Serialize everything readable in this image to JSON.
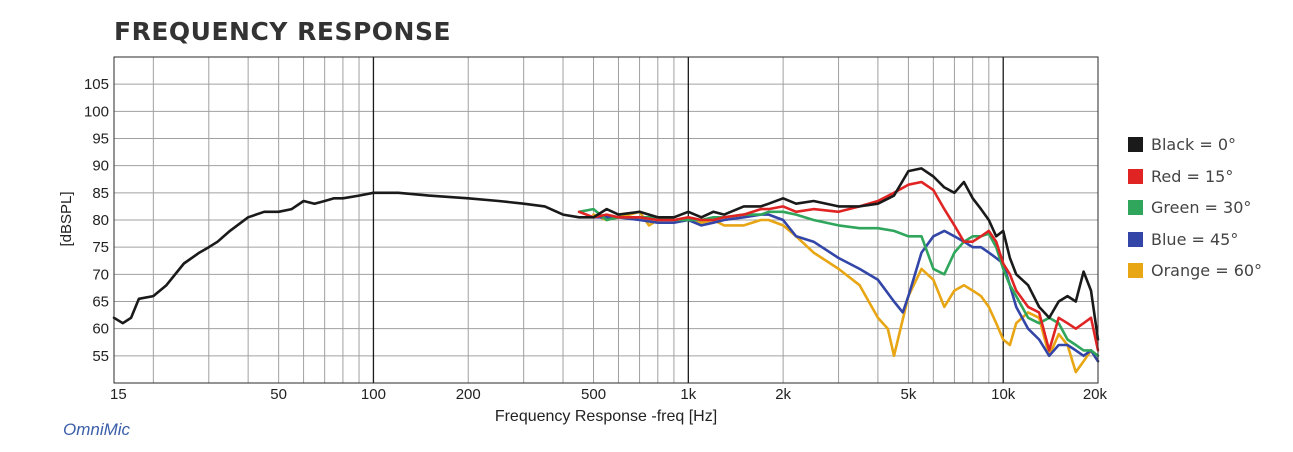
{
  "chart_data": {
    "type": "line",
    "title": "FREQUENCY RESPONSE",
    "xlabel": "Frequency Response -freq [Hz]",
    "ylabel": "[dBSPL]",
    "x_scale": "log",
    "xlim": [
      15,
      20000
    ],
    "ylim": [
      50,
      110
    ],
    "x_ticks": [
      15,
      50,
      100,
      200,
      500,
      1000,
      2000,
      5000,
      10000,
      20000
    ],
    "x_tick_labels": [
      "15",
      "50",
      "100",
      "200",
      "500",
      "1k",
      "2k",
      "5k",
      "10k",
      "20k"
    ],
    "y_ticks": [
      55,
      60,
      65,
      70,
      75,
      80,
      85,
      90,
      95,
      100,
      105
    ],
    "grid": true,
    "legend_position": "right",
    "series": [
      {
        "name": "Black = 0°",
        "color": "#1a1a1a",
        "x": [
          15,
          16,
          17,
          18,
          20,
          22,
          25,
          28,
          30,
          32,
          35,
          40,
          45,
          50,
          55,
          60,
          65,
          70,
          75,
          80,
          90,
          100,
          110,
          120,
          150,
          200,
          250,
          300,
          350,
          400,
          450,
          500,
          550,
          600,
          700,
          800,
          900,
          1000,
          1100,
          1200,
          1300,
          1500,
          1700,
          1800,
          2000,
          2200,
          2500,
          3000,
          3500,
          4000,
          4500,
          5000,
          5500,
          6000,
          6500,
          7000,
          7500,
          8000,
          8500,
          9000,
          9500,
          10000,
          10500,
          11000,
          12000,
          13000,
          14000,
          15000,
          16000,
          17000,
          18000,
          19000,
          20000
        ],
        "y": [
          62,
          61,
          62,
          65.5,
          66,
          68,
          72,
          74,
          75,
          76,
          78,
          80.5,
          81.5,
          81.5,
          82,
          83.5,
          83,
          83.5,
          84,
          84,
          84.5,
          85,
          85,
          85,
          84.5,
          84,
          83.5,
          83,
          82.5,
          81,
          80.5,
          80.5,
          82,
          81,
          81.5,
          80.5,
          80.5,
          81.5,
          80.5,
          81.5,
          81,
          82.5,
          82.5,
          83,
          84,
          83,
          83.5,
          82.5,
          82.5,
          83,
          84.5,
          89,
          89.5,
          88,
          86,
          85,
          87,
          84,
          82,
          80,
          77,
          78,
          73,
          70,
          68,
          64,
          62,
          65,
          66,
          65,
          70.5,
          67,
          58
        ]
      },
      {
        "name": "Red = 15°",
        "color": "#e02424",
        "x": [
          450,
          500,
          550,
          600,
          700,
          800,
          900,
          1000,
          1100,
          1200,
          1300,
          1500,
          1700,
          1800,
          2000,
          2200,
          2500,
          3000,
          3500,
          4000,
          4500,
          5000,
          5500,
          6000,
          6500,
          7000,
          7500,
          8000,
          8500,
          9000,
          9500,
          10000,
          10500,
          11000,
          12000,
          13000,
          14000,
          15000,
          16000,
          17000,
          18000,
          19000,
          20000
        ],
        "y": [
          81.5,
          80.5,
          81,
          80.5,
          80.5,
          80,
          80,
          80.5,
          80,
          80,
          80.5,
          81,
          82,
          82,
          82.5,
          81.5,
          82,
          81.5,
          82.5,
          83.5,
          85,
          86.5,
          87,
          85.5,
          82,
          79,
          76,
          76,
          77,
          78,
          76,
          72,
          70,
          67,
          64,
          63,
          56,
          62,
          61,
          60,
          61,
          62,
          56
        ]
      },
      {
        "name": "Green = 30°",
        "color": "#2fa65b",
        "x": [
          450,
          500,
          550,
          600,
          700,
          800,
          900,
          1000,
          1100,
          1200,
          1300,
          1500,
          1700,
          1800,
          2000,
          2200,
          2500,
          3000,
          3500,
          4000,
          4500,
          5000,
          5500,
          6000,
          6500,
          7000,
          7500,
          8000,
          8500,
          9000,
          9500,
          10000,
          10500,
          11000,
          12000,
          13000,
          14000,
          15000,
          16000,
          17000,
          18000,
          19000,
          20000
        ],
        "y": [
          81.5,
          82,
          80,
          80.5,
          80.5,
          80.5,
          80,
          80,
          80,
          80.5,
          80.5,
          81,
          81,
          81.5,
          81.5,
          81,
          80,
          79,
          78.5,
          78.5,
          78,
          77,
          77,
          71,
          70,
          74,
          76,
          77,
          77,
          77.5,
          75,
          71,
          68,
          66,
          62,
          61,
          62,
          61,
          58,
          57,
          56,
          56,
          55
        ]
      },
      {
        "name": "Blue = 45°",
        "color": "#3346a8",
        "x": [
          500,
          550,
          600,
          700,
          800,
          900,
          1000,
          1100,
          1200,
          1300,
          1500,
          1700,
          1800,
          2000,
          2200,
          2500,
          3000,
          3500,
          4000,
          4500,
          4800,
          5000,
          5500,
          6000,
          6500,
          7000,
          7500,
          8000,
          8500,
          9000,
          9500,
          10000,
          10500,
          11000,
          12000,
          13000,
          14000,
          15000,
          16000,
          17000,
          18000,
          19000,
          20000
        ],
        "y": [
          80.5,
          80.5,
          80.5,
          80,
          79.5,
          79.5,
          80,
          79,
          79.5,
          80,
          80.5,
          81,
          81,
          80,
          77,
          76,
          73,
          71,
          69,
          65,
          63,
          66,
          74,
          77,
          78,
          77,
          76,
          75,
          75,
          74,
          73,
          72,
          68,
          64,
          60,
          58,
          55,
          57,
          57,
          56,
          55,
          56,
          54
        ]
      },
      {
        "name": "Orange = 60°",
        "color": "#e8a614",
        "x": [
          500,
          550,
          600,
          650,
          700,
          750,
          800,
          900,
          1000,
          1100,
          1200,
          1300,
          1500,
          1700,
          1800,
          2000,
          2200,
          2500,
          3000,
          3500,
          4000,
          4300,
          4500,
          5000,
          5500,
          6000,
          6500,
          7000,
          7500,
          8000,
          8500,
          9000,
          9500,
          10000,
          10500,
          11000,
          12000,
          13000,
          14000,
          15000,
          16000,
          17000,
          18000,
          19000,
          20000
        ],
        "y": [
          81,
          80,
          80.5,
          81,
          81.5,
          79,
          80,
          80,
          80,
          79.5,
          80,
          79,
          79,
          80,
          80,
          79,
          77,
          74,
          71,
          68,
          62,
          60,
          55,
          66,
          71,
          69,
          64,
          67,
          68,
          67,
          66,
          64,
          61,
          58,
          57,
          61,
          63,
          62,
          55,
          59,
          57,
          52,
          54,
          56,
          54
        ]
      }
    ]
  },
  "watermark": "OmniMic"
}
